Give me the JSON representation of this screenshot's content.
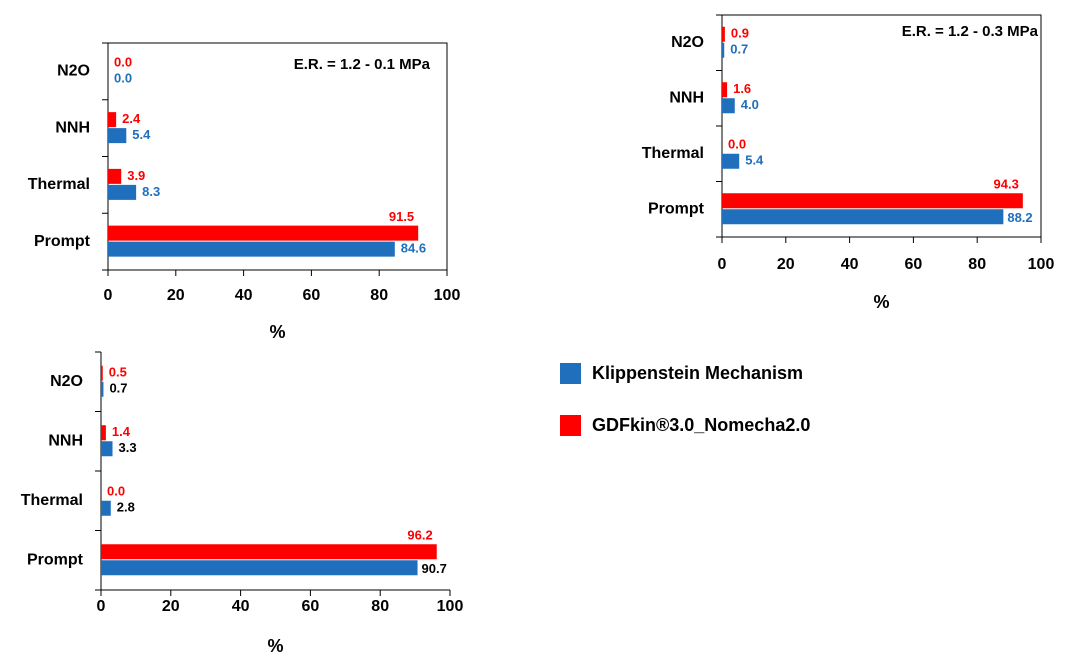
{
  "legend": [
    {
      "name": "Klippenstein Mechanism",
      "color": "#1f6fbd"
    },
    {
      "name": "GDFkin®3.0_Nomecha2.0",
      "color": "#ff0000"
    }
  ],
  "chart_data": [
    {
      "type": "barh",
      "annotation": "E.R. = 1.2 - 0.1 MPa",
      "xlabel": "%",
      "categories": [
        "N2O",
        "NNH",
        "Thermal",
        "Prompt"
      ],
      "series": [
        {
          "values": [
            0,
            5.4,
            8.3,
            84.6
          ],
          "value_labels": [
            "0.0",
            "5.4",
            "8.3",
            "84.6"
          ],
          "label_color": "#1f6fbd"
        },
        {
          "values": [
            0,
            2.4,
            3.9,
            91.5
          ],
          "value_labels": [
            "0.0",
            "2.4",
            "3.9",
            "91.5"
          ],
          "label_color": "#ff0000"
        }
      ],
      "xlim": [
        0,
        100
      ],
      "xticks": [
        0,
        20,
        40,
        60,
        80,
        100
      ],
      "frame": true
    },
    {
      "type": "barh",
      "annotation": "E.R. = 1.2 - 0.3 MPa",
      "xlabel": "%",
      "categories": [
        "N2O",
        "NNH",
        "Thermal",
        "Prompt"
      ],
      "series": [
        {
          "values": [
            0.7,
            4.0,
            5.4,
            88.2
          ],
          "value_labels": [
            "0.7",
            "4.0",
            "5.4",
            "88.2"
          ],
          "label_color": "#1f6fbd"
        },
        {
          "values": [
            0.9,
            1.6,
            0,
            94.3
          ],
          "value_labels": [
            "0.9",
            "1.6",
            "0.0",
            "94.3"
          ],
          "label_color": "#ff0000"
        }
      ],
      "xlim": [
        0,
        100
      ],
      "xticks": [
        0,
        20,
        40,
        60,
        80,
        100
      ],
      "frame": true
    },
    {
      "type": "barh",
      "xlabel": "%",
      "categories": [
        "N2O",
        "NNH",
        "Thermal",
        "Prompt"
      ],
      "series": [
        {
          "values": [
            0.7,
            3.3,
            2.8,
            90.7
          ],
          "value_labels": [
            "0.7",
            "3.3",
            "2.8",
            "90.7"
          ],
          "label_color": "#000000"
        },
        {
          "values": [
            0.5,
            1.4,
            0,
            96.2
          ],
          "value_labels": [
            "0.5",
            "1.4",
            "0.0",
            "96.2"
          ],
          "label_color": "#ff0000"
        }
      ],
      "xlim": [
        0,
        100
      ],
      "xticks": [
        0,
        20,
        40,
        60,
        80,
        100
      ],
      "frame": false
    }
  ]
}
